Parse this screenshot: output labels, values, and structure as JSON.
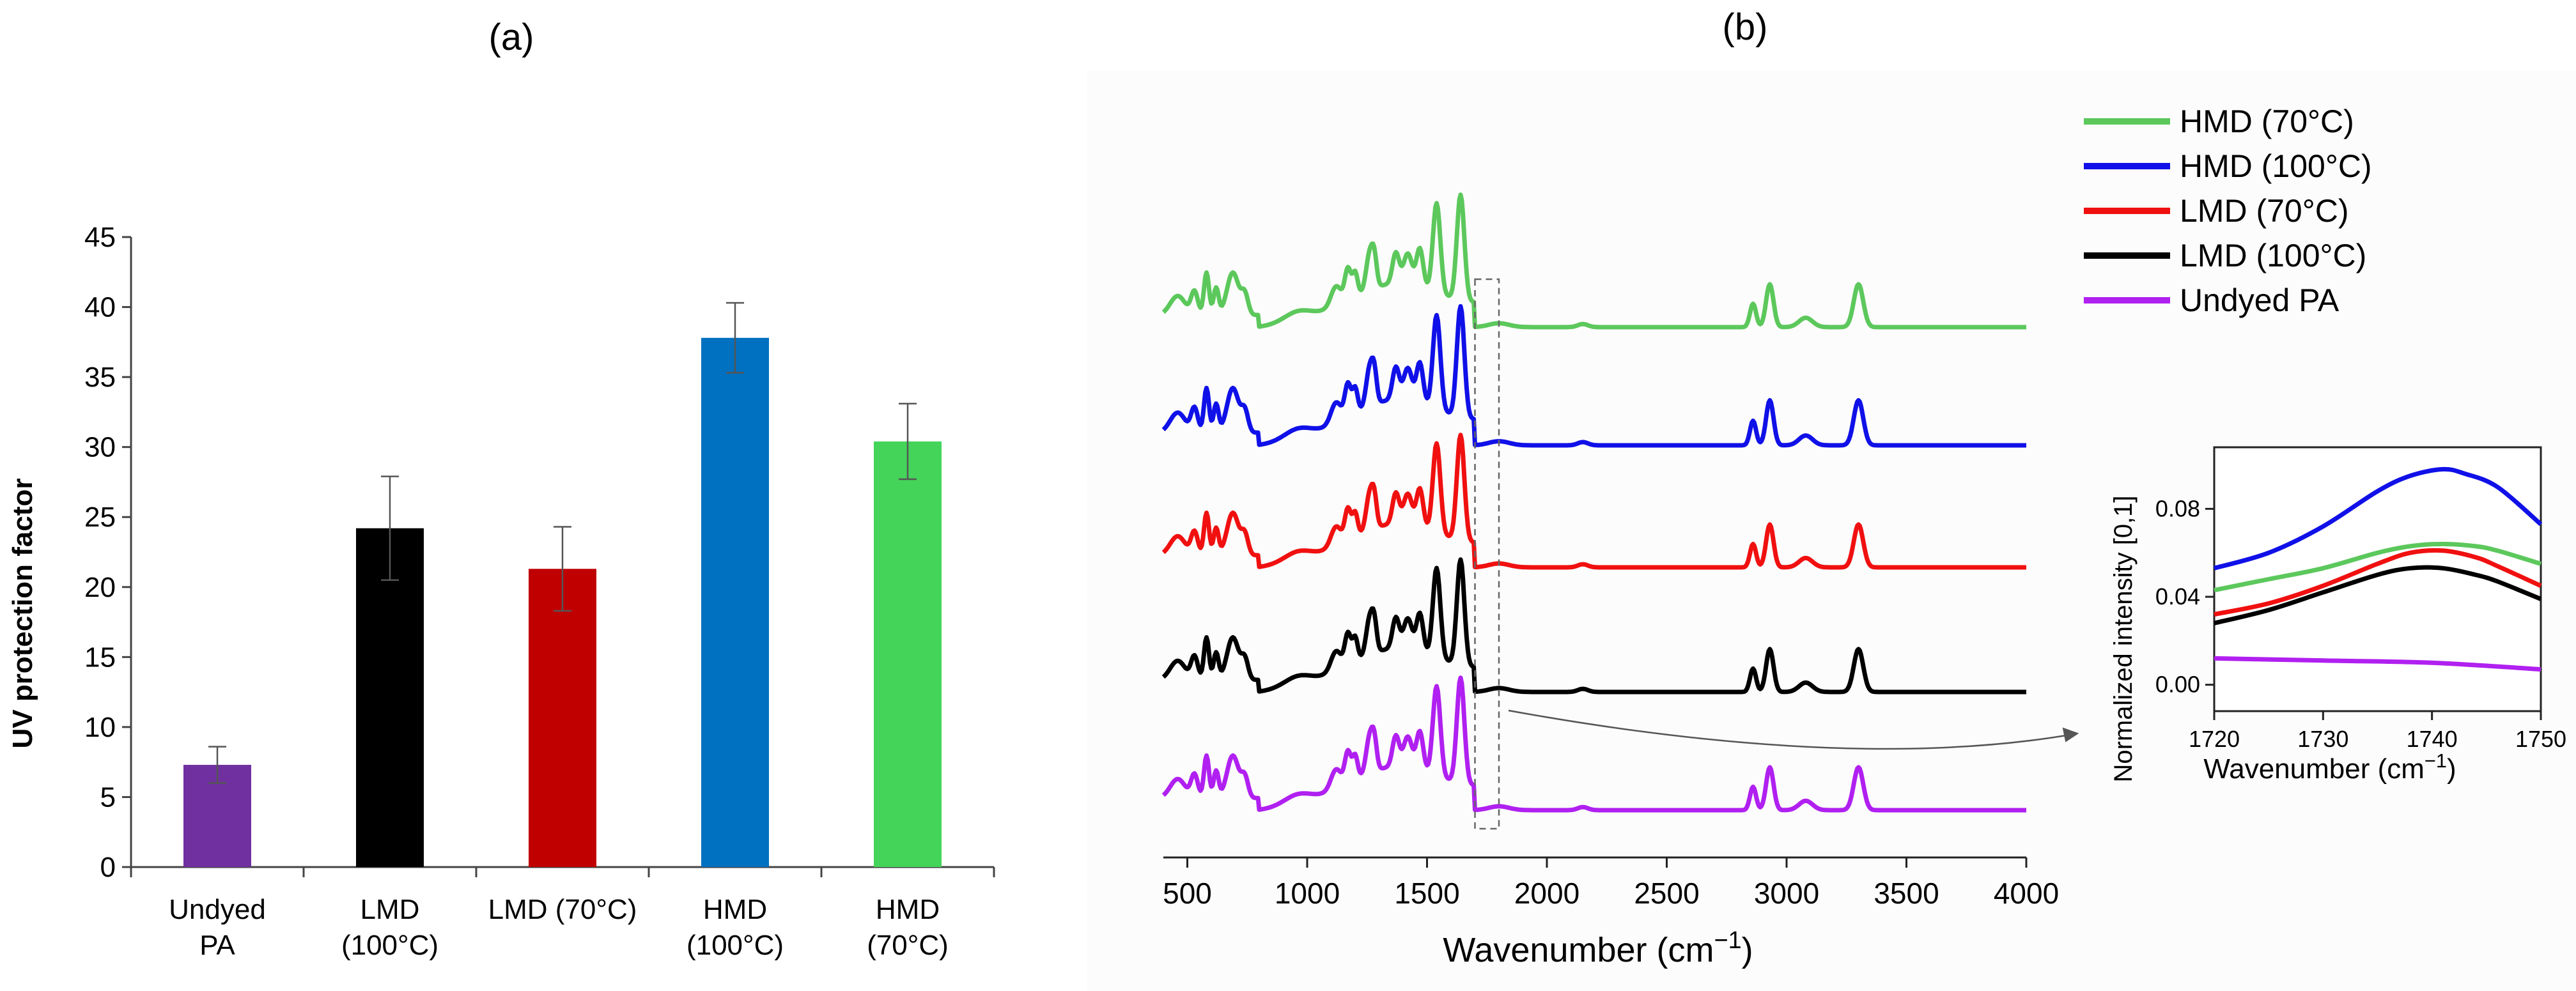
{
  "chart_data": [
    {
      "type": "bar",
      "panel_label": "(a)",
      "title": "",
      "xlabel": "",
      "ylabel": "UV protection factor",
      "ylim": [
        0,
        45
      ],
      "yticks": [
        "0",
        "5",
        "10",
        "15",
        "20",
        "25",
        "30",
        "35",
        "40",
        "45"
      ],
      "grid": false,
      "categories": [
        [
          "Undyed",
          "PA"
        ],
        [
          "LMD",
          "(100°C)"
        ],
        [
          "LMD (70°C)"
        ],
        [
          "HMD",
          "(100°C)"
        ],
        [
          "HMD",
          "(70°C)"
        ]
      ],
      "values": [
        7.3,
        24.2,
        21.3,
        37.8,
        30.4
      ],
      "errors": [
        1.3,
        3.7,
        3.0,
        2.5,
        2.7
      ],
      "colors": [
        "#7030A0",
        "#000000",
        "#C00000",
        "#0070C0",
        "#44D45A"
      ]
    },
    {
      "type": "line",
      "panel_label": "(b)",
      "xlabel": "Wavenumber (cm⁻¹)",
      "ylabel": "",
      "xlim": [
        400,
        4000
      ],
      "xticks": [
        "500",
        "1000",
        "1500",
        "2000",
        "2500",
        "3000",
        "3500",
        "4000"
      ],
      "legend_position": "top-right",
      "series": [
        {
          "name": "HMD (70°C)",
          "color": "#5CC85C",
          "offset": 4
        },
        {
          "name": "HMD (100°C)",
          "color": "#1010E8",
          "offset": 3
        },
        {
          "name": "LMD (70°C)",
          "color": "#F01010",
          "offset": 2
        },
        {
          "name": "LMD (100°C)",
          "color": "#000000",
          "offset": 1
        },
        {
          "name": "Undyed PA",
          "color": "#B020F0",
          "offset": 0
        }
      ],
      "highlight_region": [
        1700,
        1800
      ]
    },
    {
      "type": "line",
      "panel_label": "inset",
      "xlabel": "Wavenumber (cm⁻¹)",
      "ylabel": "Normalized intensity [0,1]",
      "xlim": [
        1720,
        1750
      ],
      "ylim": [
        -0.012,
        0.108
      ],
      "xticks": [
        "1720",
        "1730",
        "1740",
        "1750"
      ],
      "yticks": [
        "0.00",
        "0.04",
        "0.08"
      ],
      "series": [
        {
          "name": "HMD (100°C)",
          "color": "#1010E8",
          "x": [
            1720,
            1725,
            1730,
            1735,
            1738,
            1741,
            1743,
            1746,
            1750
          ],
          "y": [
            0.053,
            0.06,
            0.072,
            0.088,
            0.095,
            0.098,
            0.096,
            0.09,
            0.073
          ]
        },
        {
          "name": "HMD (70°C)",
          "color": "#5CC85C",
          "x": [
            1720,
            1725,
            1730,
            1735,
            1738,
            1741,
            1744,
            1746,
            1750
          ],
          "y": [
            0.043,
            0.048,
            0.053,
            0.06,
            0.063,
            0.064,
            0.063,
            0.061,
            0.055
          ]
        },
        {
          "name": "LMD (70°C)",
          "color": "#F01010",
          "x": [
            1720,
            1725,
            1730,
            1735,
            1738,
            1741,
            1744,
            1746,
            1750
          ],
          "y": [
            0.032,
            0.037,
            0.045,
            0.055,
            0.06,
            0.061,
            0.058,
            0.054,
            0.045
          ]
        },
        {
          "name": "LMD (100°C)",
          "color": "#000000",
          "x": [
            1720,
            1725,
            1730,
            1735,
            1738,
            1741,
            1744,
            1746,
            1750
          ],
          "y": [
            0.028,
            0.034,
            0.042,
            0.05,
            0.053,
            0.053,
            0.05,
            0.047,
            0.039
          ]
        },
        {
          "name": "Undyed PA",
          "color": "#B020F0",
          "x": [
            1720,
            1730,
            1740,
            1750
          ],
          "y": [
            0.012,
            0.011,
            0.01,
            0.007
          ]
        }
      ]
    }
  ]
}
